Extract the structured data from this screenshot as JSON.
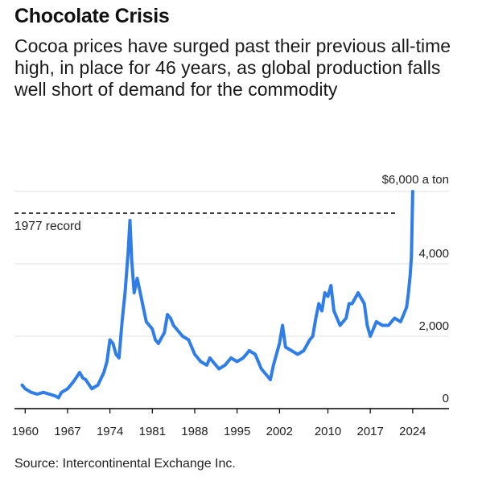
{
  "header": {
    "title": "Chocolate Crisis",
    "subtitle": "Cocoa prices have surged past their previous all-time high, in place for 46 years, as global production falls well short of demand for the commodity"
  },
  "footer": {
    "source": "Source: Intercontinental Exchange Inc."
  },
  "colors": {
    "line": "#2f7de8",
    "grid": "#e6e6e6",
    "axis": "#000000",
    "record_line": "#000000"
  },
  "chart_data": {
    "type": "line",
    "title": "Chocolate Crisis",
    "xlabel": "",
    "ylabel": "",
    "ylim": [
      0,
      6000
    ],
    "yticks": [
      0,
      2000,
      4000,
      6000
    ],
    "ytick_labels": [
      "0",
      "2,000",
      "4,000",
      "$6,000 a ton"
    ],
    "xticks": [
      1960,
      1967,
      1974,
      1981,
      1988,
      1995,
      2002,
      2010,
      2017,
      2024
    ],
    "xtick_labels": [
      "1960",
      "1967",
      "1974",
      "1981",
      "1988",
      "1995",
      "2002",
      "2010",
      "2017",
      "2024"
    ],
    "xlim": [
      1958.5,
      2030
    ],
    "grid": true,
    "reference_lines": [
      {
        "label": "1977 record",
        "value": 5400,
        "style": "dashed"
      }
    ],
    "series": [
      {
        "name": "",
        "x": [
          1959.5,
          1960,
          1961,
          1962,
          1963,
          1964,
          1965,
          1965.5,
          1966,
          1967,
          1968,
          1969,
          1969.5,
          1970,
          1971,
          1971.5,
          1972,
          1973,
          1973.5,
          1974,
          1974.5,
          1975,
          1975.5,
          1976,
          1976.5,
          1977,
          1977.3,
          1977.6,
          1978,
          1978.5,
          1979,
          1979.5,
          1980,
          1981,
          1981.5,
          1982,
          1983,
          1983.5,
          1984,
          1984.5,
          1985,
          1986,
          1987,
          1988,
          1989,
          1990,
          1990.5,
          1991,
          1992,
          1993,
          1994,
          1995,
          1996,
          1997,
          1998,
          1999,
          2000,
          2000.5,
          2001,
          2002,
          2002.5,
          2003,
          2004,
          2005,
          2006,
          2007,
          2007.5,
          2008,
          2008.5,
          2009,
          2009.5,
          2010,
          2010.5,
          2011,
          2012,
          2013,
          2013.5,
          2014,
          2015,
          2016,
          2016.5,
          2017,
          2018,
          2019,
          2020,
          2021,
          2022,
          2022.5,
          2023,
          2023.3,
          2023.6,
          2023.8,
          2024
        ],
        "values": [
          650,
          550,
          450,
          400,
          450,
          400,
          350,
          300,
          450,
          550,
          750,
          1000,
          850,
          800,
          550,
          600,
          650,
          1000,
          1300,
          1900,
          1800,
          1500,
          1400,
          2400,
          3200,
          4300,
          5200,
          4100,
          3200,
          3600,
          3200,
          2800,
          2400,
          2200,
          1900,
          1800,
          2100,
          2600,
          2500,
          2300,
          2200,
          2000,
          1900,
          1500,
          1300,
          1200,
          1400,
          1300,
          1100,
          1200,
          1400,
          1300,
          1400,
          1600,
          1500,
          1100,
          900,
          800,
          1200,
          1800,
          2300,
          1700,
          1600,
          1500,
          1600,
          1900,
          2000,
          2500,
          2900,
          2700,
          3200,
          3100,
          3400,
          2700,
          2300,
          2500,
          2900,
          2900,
          3200,
          2900,
          2300,
          2000,
          2400,
          2300,
          2300,
          2500,
          2400,
          2600,
          2800,
          3200,
          3700,
          4200,
          6000
        ]
      }
    ]
  }
}
